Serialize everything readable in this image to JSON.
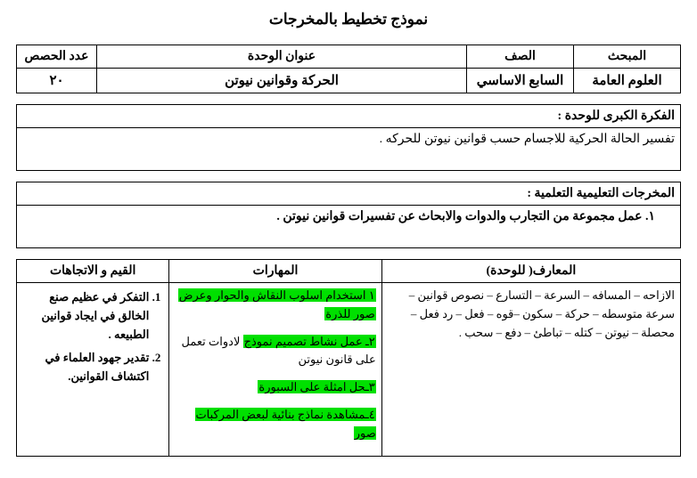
{
  "title": "نموذج تخطيط بالمخرجات",
  "info": {
    "headers": {
      "subject": "المبحث",
      "grade": "الصف",
      "unit_title": "عنوان الوحدة",
      "periods": "عدد الحصص"
    },
    "values": {
      "subject": "العلوم العامة",
      "grade": "السابع  الاساسي",
      "unit_title": "الحركة وقوانين نيوتن",
      "periods": "٢٠"
    }
  },
  "big_idea": {
    "header": "الفكرة الكبرى للوحدة :",
    "body": "تفسير الحالة الحركية للاجسام حسب قوانين نيوتن للحركه ."
  },
  "outcomes": {
    "header": "المخرجات التعليمية التعلمية :",
    "item1": "١.  عمل مجموعة من  التجارب والدوات والابحاث عن تفسيرات قوانين نيوتن ."
  },
  "kst_headers": {
    "knowledge": "المعارف( للوحدة)",
    "skills": "المهارات",
    "values": "القيم و الاتجاهات"
  },
  "knowledge_text": "الازاحه – المسافه – السرعة – التسارع – نصوص قوانين – سرعة متوسطه – حركة – سكون –قوه – فعل – رد فعل – محصلة – نيوتن – كتله – تباطئ – دفع – سحب .",
  "skills": {
    "s1a": "١  استخدام اسلوب النقاش والحوار وعرض",
    "s1b": "صور للذرة",
    "s2a": "٢ـ عمل نشاط  تصميم نموذج",
    "s2b": " لادوات تعمل على قانون نيوتن",
    "s3": "٣ـحل امثلة على السبورة",
    "s4": "٤ـمشاهدة نماذج بنائية لبعض المركبات صور"
  },
  "values": {
    "v1": "التفكر في عظيم صنع الخالق في ايجاد قوانين الطبيعه .",
    "v2": "تقدير جهود العلماء في اكتشاف القوانين."
  }
}
